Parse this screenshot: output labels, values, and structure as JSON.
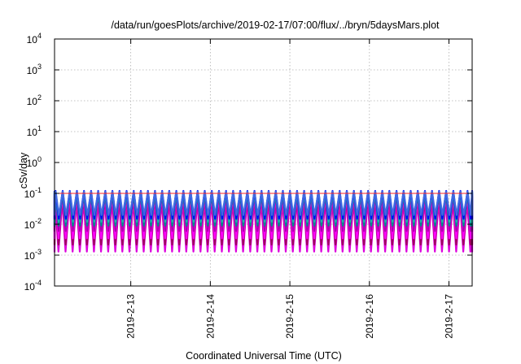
{
  "chart_data": {
    "type": "line",
    "title": "/data/run/goesPlots/archive/2019-02-17/07:00/flux/../bryn/5daysMars.plot",
    "xlabel": "Coordinated Universal Time (UTC)",
    "ylabel": "cSv/day",
    "yscale": "log",
    "ylim": [
      0.0001,
      10000
    ],
    "y_ticks": [
      {
        "base": "10",
        "exp": "-4"
      },
      {
        "base": "10",
        "exp": "-3"
      },
      {
        "base": "10",
        "exp": "-2"
      },
      {
        "base": "10",
        "exp": "-1"
      },
      {
        "base": "10",
        "exp": "0"
      },
      {
        "base": "10",
        "exp": "1"
      },
      {
        "base": "10",
        "exp": "2"
      },
      {
        "base": "10",
        "exp": "3"
      },
      {
        "base": "10",
        "exp": "4"
      }
    ],
    "xlim": [
      "2019-02-12T01:00",
      "2019-02-17T07:00"
    ],
    "x_ticks": [
      "2019-2-13",
      "2019-2-14",
      "2019-2-15",
      "2019-2-16",
      "2019-2-17"
    ],
    "grid": true,
    "pattern": {
      "description_values": "sawtooth dose rate with about 11.2 cycles per day",
      "cycles_per_day": 11.2,
      "peak_y": 0.1,
      "trough_y_min": 0.0013,
      "trough_y_max": 0.02
    },
    "series": [
      {
        "color": "#dd00dd",
        "peak": 0.06,
        "trough": 0.0013
      },
      {
        "color": "#a00060",
        "peak": 0.08,
        "trough": 0.0022
      },
      {
        "color": "#ff00ff",
        "peak": 0.09,
        "trough": 0.0035
      },
      {
        "color": "#b000b0",
        "peak": 0.1,
        "trough": 0.006
      },
      {
        "color": "#008b8b",
        "peak": 0.11,
        "trough": 0.009
      },
      {
        "color": "#20b2aa",
        "peak": 0.105,
        "trough": 0.012
      },
      {
        "color": "#0000ff",
        "peak": 0.12,
        "trough": 0.015
      },
      {
        "color": "#4169e1",
        "peak": 0.115,
        "trough": 0.02
      },
      {
        "color": "#ff2020",
        "peak": 0.1,
        "trough": 0.1
      }
    ]
  }
}
